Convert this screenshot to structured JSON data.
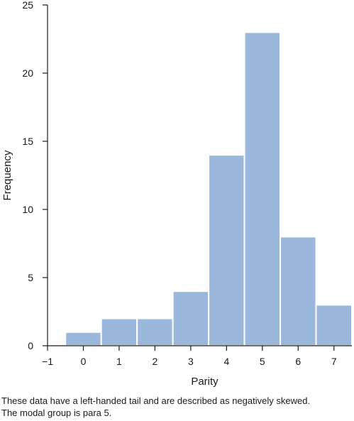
{
  "chart_data": {
    "type": "bar",
    "histogram": true,
    "categories": [
      "0",
      "1",
      "2",
      "3",
      "4",
      "5",
      "6",
      "7"
    ],
    "x": [
      0,
      1,
      2,
      3,
      4,
      5,
      6,
      7
    ],
    "values": [
      1,
      2,
      2,
      4,
      14,
      23,
      8,
      3
    ],
    "xlabel": "Parity",
    "ylabel": "Frequency",
    "xlim": [
      -1,
      7.5
    ],
    "ylim": [
      0,
      25
    ],
    "xticks": [
      "−1",
      "0",
      "1",
      "2",
      "3",
      "4",
      "5",
      "6",
      "7"
    ],
    "yticks": [
      "0",
      "5",
      "10",
      "15",
      "20",
      "25"
    ],
    "bar_color": "#9ab8dc",
    "grid": false,
    "legend": "none"
  },
  "caption": {
    "line1": "These data have a left-handed tail and are described as negatively skewed.",
    "line2": "The modal group is para 5."
  }
}
